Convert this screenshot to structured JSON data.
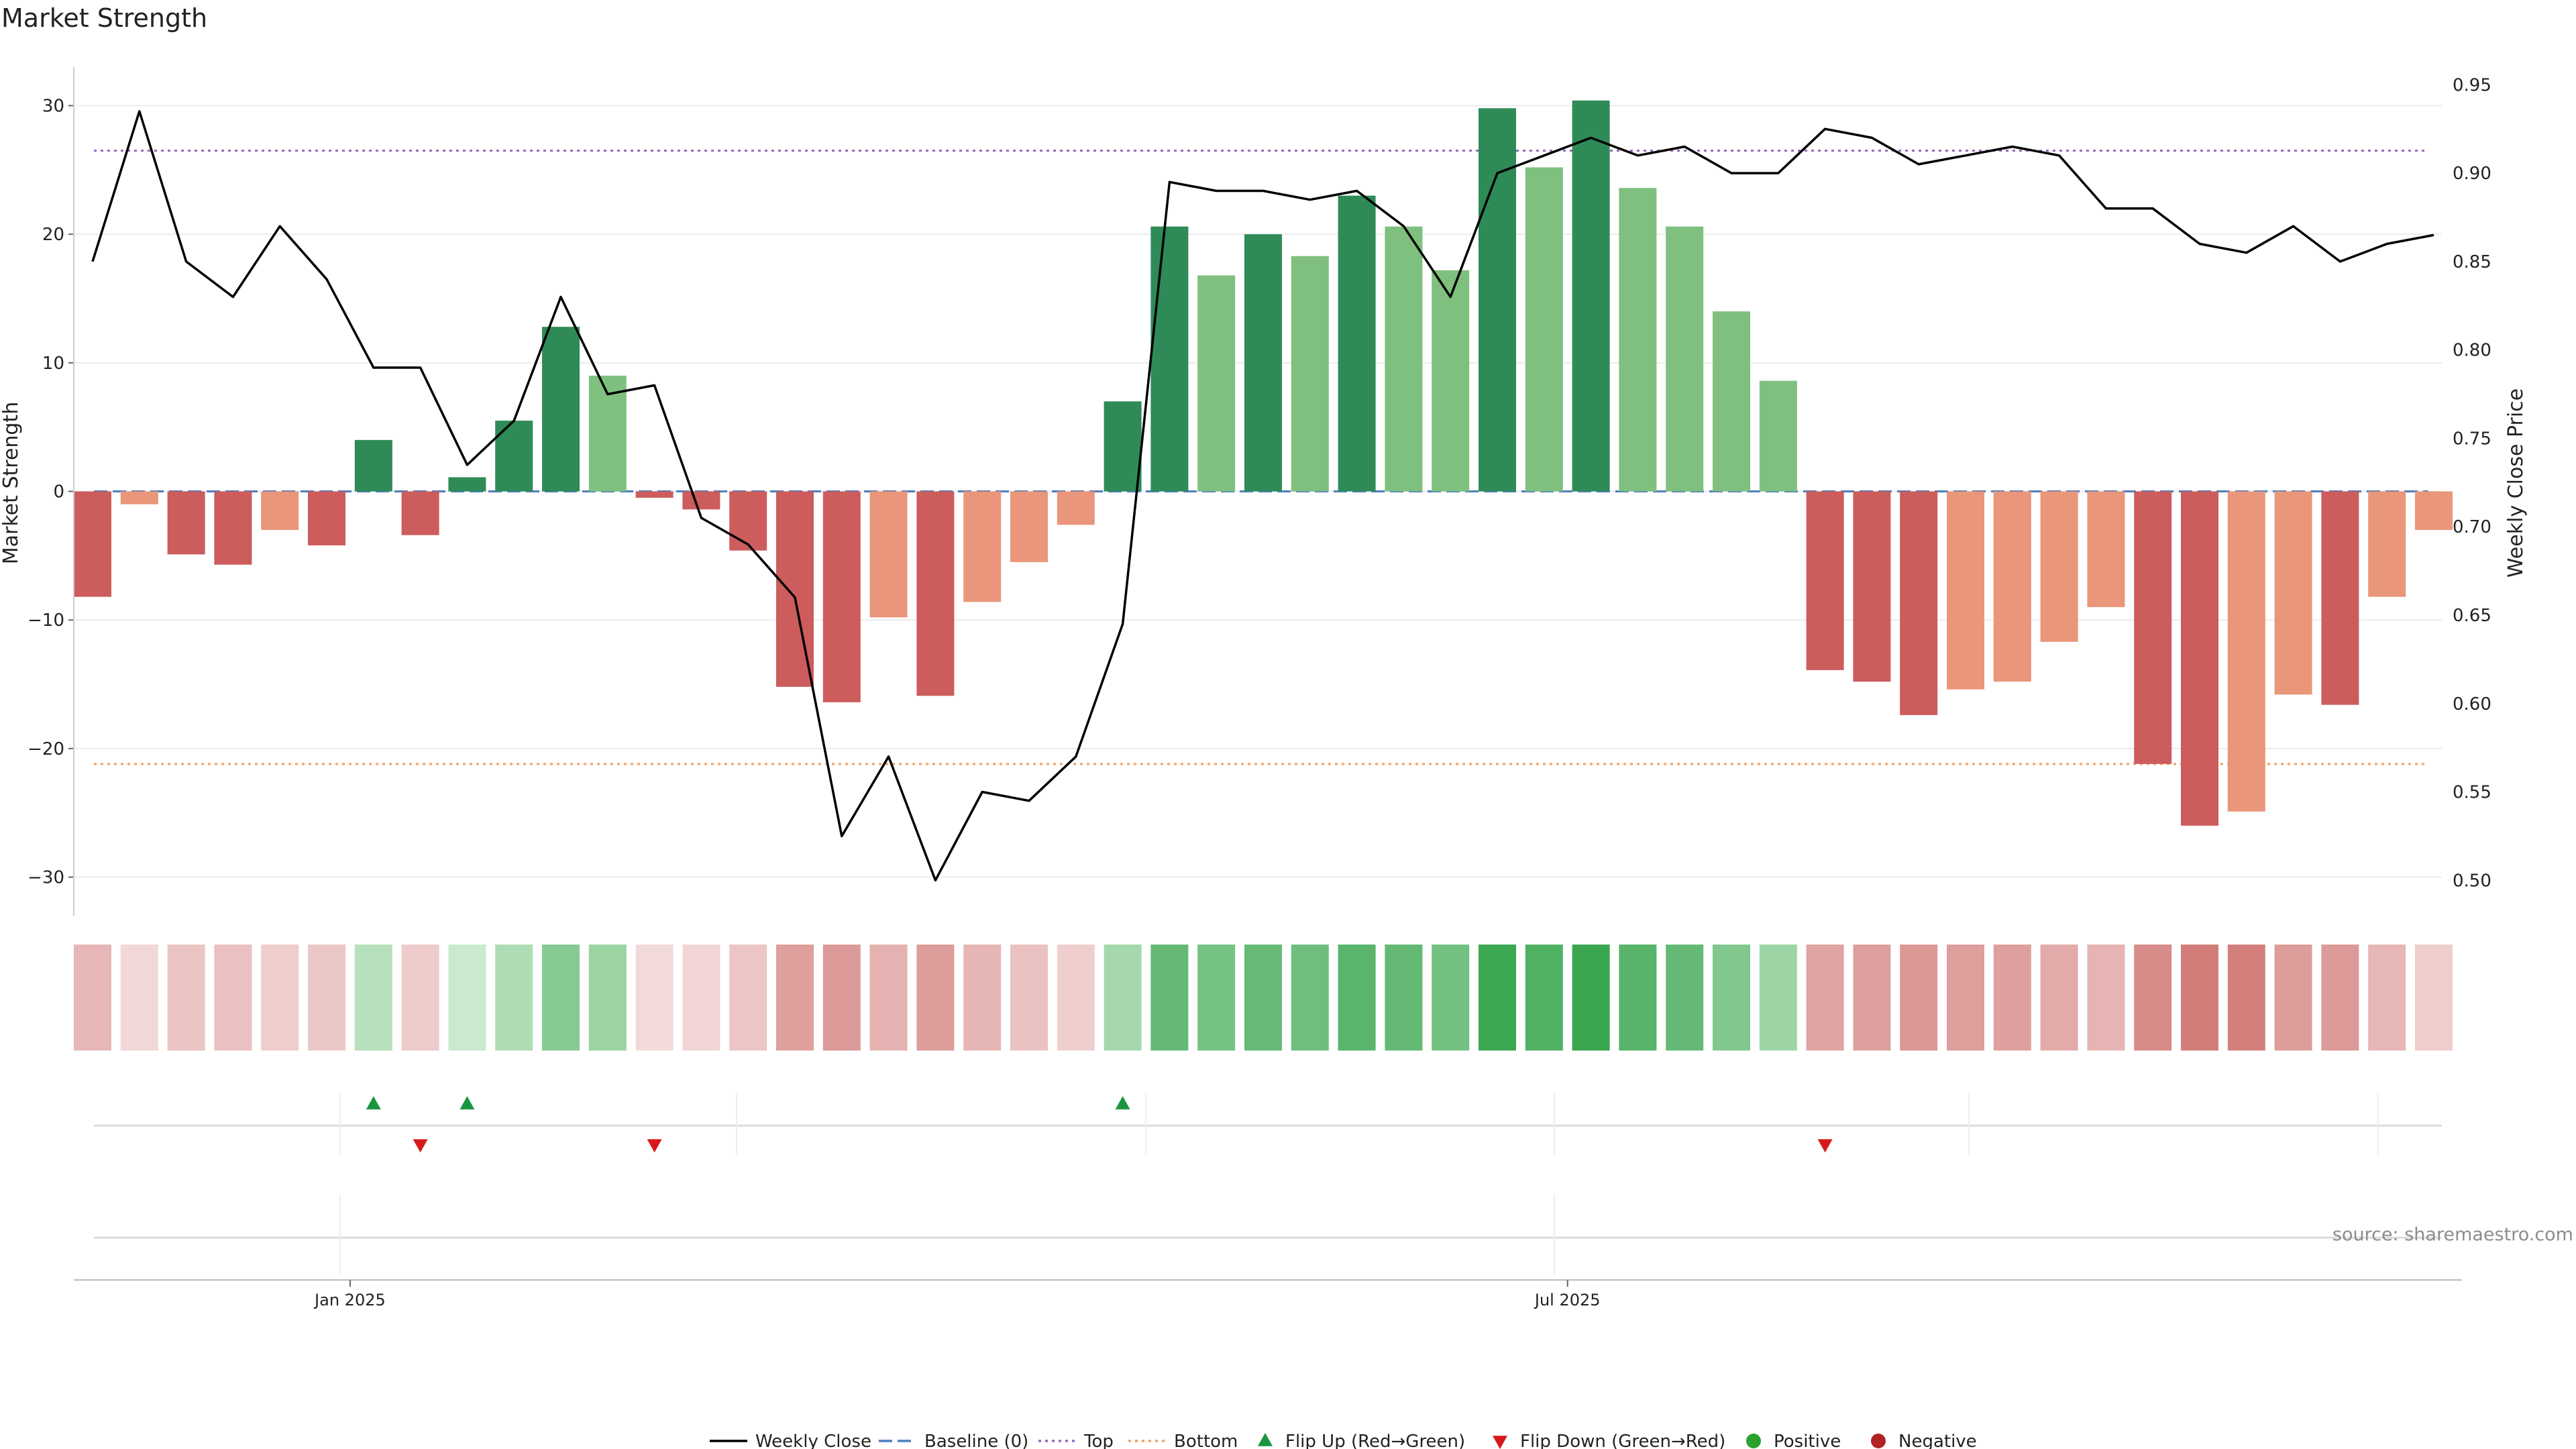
{
  "chart_data": {
    "type": "bar",
    "title": "Market Strength",
    "ylabel": "Market Strength",
    "ylabel_right": "Weekly Close Price",
    "ylim": [
      -33,
      33
    ],
    "ylim_right": [
      0.48,
      0.96
    ],
    "yticks": [
      30,
      20,
      10,
      0,
      -10,
      -20,
      -30
    ],
    "yticks_right": [
      0.95,
      0.9,
      0.85,
      0.8,
      0.75,
      0.7,
      0.65,
      0.6,
      0.55,
      0.5
    ],
    "grid": true,
    "legend_position": "bottom-center",
    "x_ticks": [
      {
        "index": 5.5,
        "label": "Jan 2025"
      },
      {
        "index": 31.5,
        "label": "Jul 2025"
      }
    ],
    "reference_lines": {
      "baseline": 0,
      "top": 26.5,
      "bottom": -21.2
    },
    "series": [
      {
        "name": "Weekly Close",
        "type": "line",
        "axis": "right",
        "values": [
          0.85,
          0.935,
          0.85,
          0.83,
          0.87,
          0.84,
          0.79,
          0.79,
          0.735,
          0.76,
          0.83,
          0.775,
          0.78,
          0.705,
          0.69,
          0.66,
          0.525,
          0.57,
          0.5,
          0.55,
          0.545,
          0.57,
          0.645,
          0.895,
          0.89,
          0.89,
          0.885,
          0.89,
          0.87,
          0.83,
          0.9,
          0.91,
          0.92,
          0.91,
          0.915,
          0.9,
          0.9,
          0.925,
          0.92,
          0.905,
          0.91,
          0.915,
          0.91,
          0.88,
          0.88,
          0.86,
          0.855,
          0.87,
          0.85,
          0.86,
          0.865
        ]
      },
      {
        "name": "Market Strength",
        "type": "bar",
        "values": [
          -8.2,
          -1.0,
          -4.9,
          -5.7,
          -3.0,
          -4.2,
          4.0,
          -3.4,
          1.1,
          5.5,
          12.8,
          9.0,
          -0.5,
          -1.4,
          -4.6,
          -15.2,
          -16.4,
          -9.8,
          -15.9,
          -8.6,
          -5.5,
          -2.6,
          7.0,
          20.6,
          16.8,
          20.0,
          18.3,
          23.0,
          20.6,
          17.2,
          29.8,
          25.2,
          30.4,
          23.6,
          20.6,
          14.0,
          8.6,
          -13.9,
          -14.8,
          -17.4,
          -15.4,
          -14.8,
          -11.7,
          -9.0,
          -21.2,
          -26.0,
          -24.9,
          -15.8,
          -16.6,
          -8.2,
          -3.0
        ]
      },
      {
        "name": "Baseline (0)",
        "type": "line"
      },
      {
        "name": "Top",
        "type": "line"
      },
      {
        "name": "Bottom",
        "type": "line"
      }
    ],
    "markers": {
      "flip_up": {
        "name": "Flip Up (Red→Green)",
        "indices": [
          6,
          8,
          22
        ]
      },
      "flip_down": {
        "name": "Flip Down (Green→Red)",
        "indices": [
          7,
          12,
          37
        ]
      },
      "positive": {
        "name": "Positive",
        "indices": []
      },
      "negative": {
        "name": "Negative",
        "indices": []
      }
    },
    "source": "source: sharemaestro.com"
  }
}
